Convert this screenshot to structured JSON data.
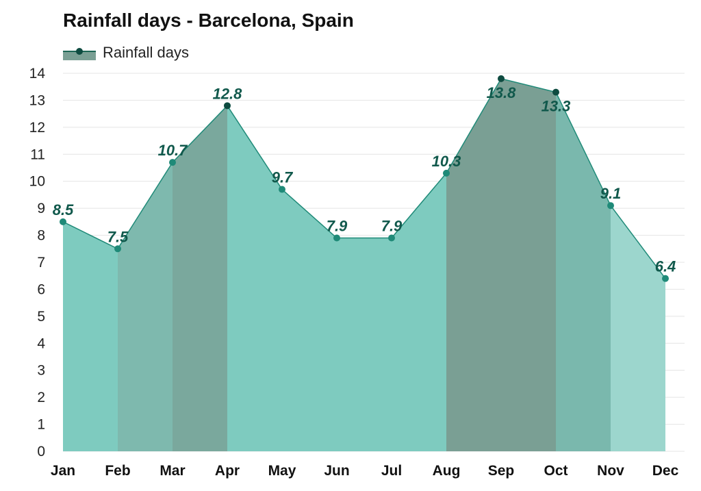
{
  "chart_data": {
    "type": "area",
    "title": "Rainfall days - Barcelona, Spain",
    "categories": [
      "Jan",
      "Feb",
      "Mar",
      "Apr",
      "May",
      "Jun",
      "Jul",
      "Aug",
      "Sep",
      "Oct",
      "Nov",
      "Dec"
    ],
    "series": [
      {
        "name": "Rainfall days",
        "values": [
          8.5,
          7.5,
          10.7,
          12.8,
          9.7,
          7.9,
          7.9,
          10.3,
          13.8,
          13.3,
          9.1,
          6.4
        ]
      }
    ],
    "data_labels": [
      "8.5",
      "7.5",
      "10.7",
      "12.8",
      "9.7",
      "7.9",
      "7.9",
      "10.3",
      "13.8",
      "13.3",
      "9.1",
      "6.4"
    ],
    "ylim": [
      0,
      14
    ],
    "yticks": [
      "0",
      "1",
      "2",
      "3",
      "4",
      "5",
      "6",
      "7",
      "8",
      "9",
      "10",
      "11",
      "12",
      "13",
      "14"
    ],
    "grid": true,
    "legend_position": "top-left",
    "colors": {
      "line": "#1f8a78",
      "marker_light": "#1f8a78",
      "marker_dark": "#0e4b40",
      "segment_fills": [
        "#7ecbbf",
        "#7eb9ae",
        "#7aa89d",
        "#7ecbbf",
        "#7ecbbf",
        "#7ecbbf",
        "#7ecbbf",
        "#7a9f94",
        "#7a9f94",
        "#7ab8ad",
        "#9cd6cd"
      ],
      "segment_fill_dark": "#7a9f94",
      "grid": "#e4e4e4"
    }
  }
}
